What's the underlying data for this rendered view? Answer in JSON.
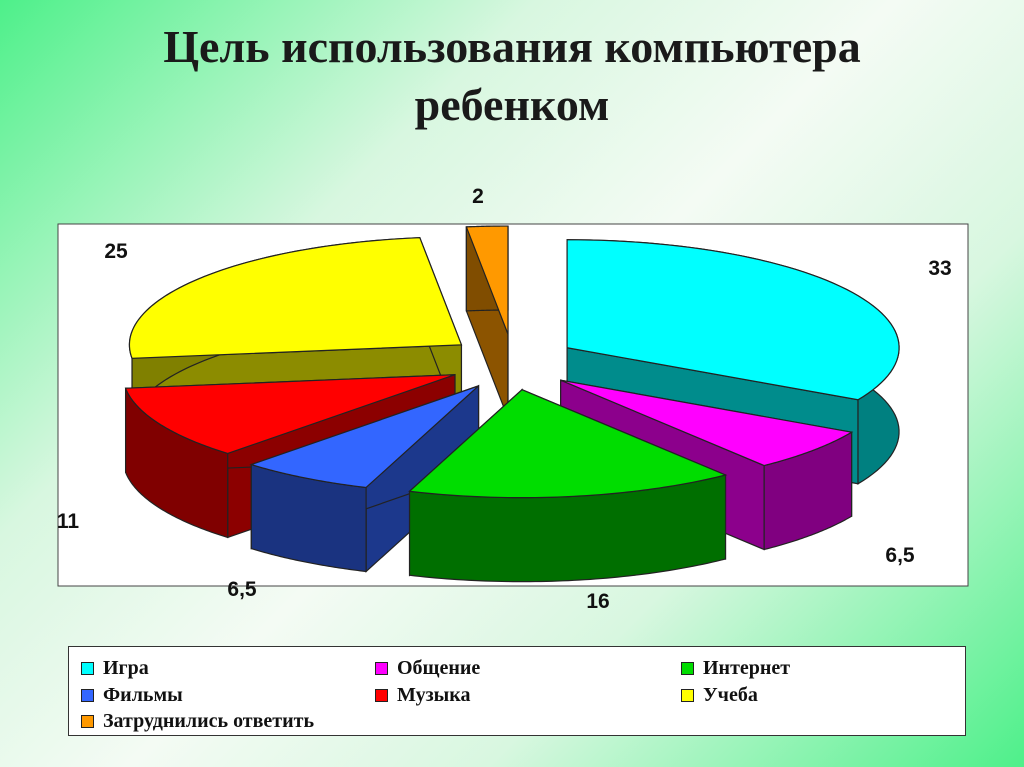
{
  "title": {
    "line1": "Цель использования компьютера",
    "line2": "ребенком"
  },
  "chart_data": {
    "type": "pie",
    "style": "3d-exploded",
    "categories": [
      "Игра",
      "Общение",
      "Интернет",
      "Фильмы",
      "Музыка",
      "Учеба",
      "Затруднились ответить"
    ],
    "values": [
      33,
      6.5,
      16,
      6.5,
      11,
      25,
      2
    ],
    "data_labels": [
      "33",
      "6,5",
      "16",
      "6,5",
      "11",
      "25",
      "2"
    ],
    "colors": [
      "#00ffff",
      "#ff00ff",
      "#00dd00",
      "#3366ff",
      "#ff0000",
      "#ffff00",
      "#ff9900"
    ],
    "legend_position": "bottom"
  },
  "legend": {
    "items": [
      {
        "label": "Игра",
        "color": "#00ffff"
      },
      {
        "label": "Общение",
        "color": "#ff00ff"
      },
      {
        "label": "Интернет",
        "color": "#00dd00"
      },
      {
        "label": "Фильмы",
        "color": "#3366ff"
      },
      {
        "label": "Музыка",
        "color": "#ff0000"
      },
      {
        "label": "Учеба",
        "color": "#ffff00"
      },
      {
        "label": "Затруднились ответить",
        "color": "#ff9900"
      }
    ]
  }
}
